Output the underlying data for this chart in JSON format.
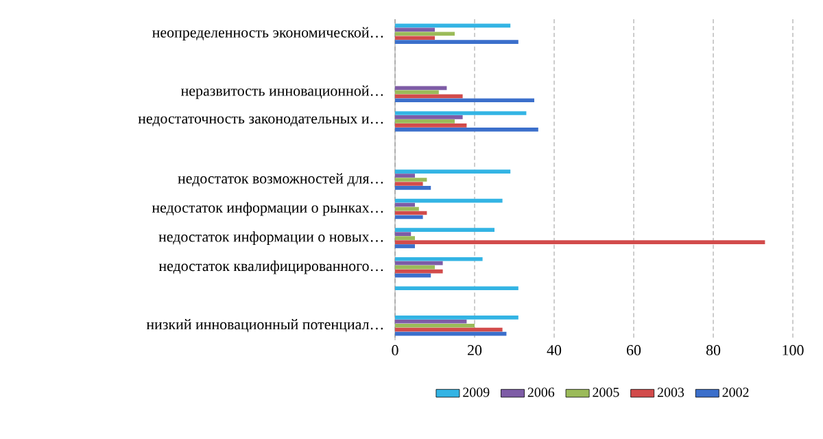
{
  "chart_data": {
    "type": "bar",
    "orientation": "horizontal",
    "categories": [
      "неопределенность экономической…",
      null,
      "неразвитость инновационной…",
      "недостаточность законодательных и…",
      null,
      "недостаток возможностей для…",
      "недостаток информации о рынках…",
      "недостаток информации о новых…",
      "недостаток квалифицированного…",
      null,
      "низкий инновационный потенциал…"
    ],
    "series": [
      {
        "name": "2009",
        "color": "#33b4e4",
        "values": [
          29,
          null,
          null,
          33,
          null,
          29,
          27,
          25,
          22,
          31,
          31
        ]
      },
      {
        "name": "2006",
        "color": "#7e5ca6",
        "values": [
          10,
          null,
          13,
          17,
          null,
          5,
          5,
          4,
          12,
          null,
          18
        ]
      },
      {
        "name": "2005",
        "color": "#9bbb59",
        "values": [
          15,
          null,
          11,
          15,
          null,
          8,
          6,
          5,
          10,
          null,
          20
        ]
      },
      {
        "name": "2003",
        "color": "#d24b4b",
        "values": [
          10,
          null,
          17,
          18,
          null,
          7,
          8,
          93,
          12,
          null,
          27
        ]
      },
      {
        "name": "2002",
        "color": "#3b6fcb",
        "values": [
          31,
          null,
          35,
          36,
          null,
          9,
          7,
          5,
          9,
          null,
          28
        ]
      }
    ],
    "xlim": [
      0,
      100
    ],
    "xticks": [
      0,
      20,
      40,
      60,
      80,
      100
    ],
    "grid": "x",
    "legend": "bottom"
  }
}
